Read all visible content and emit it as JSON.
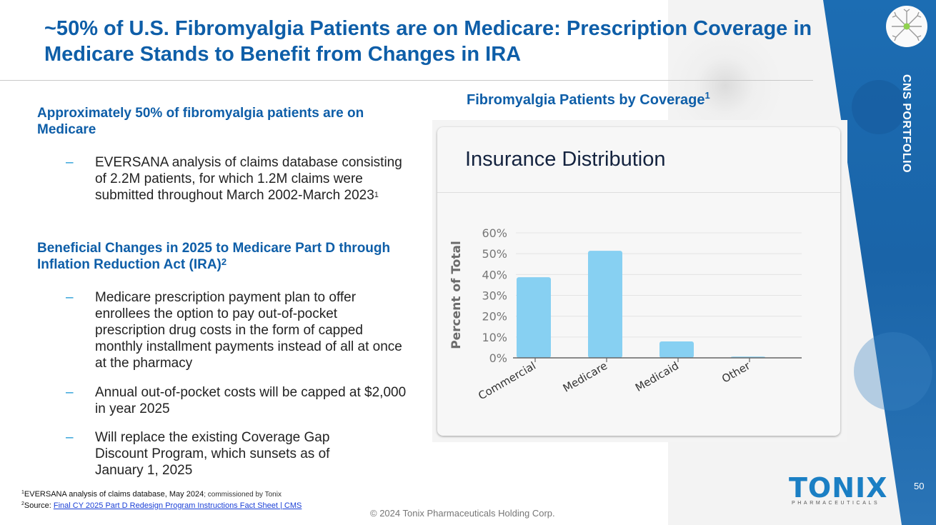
{
  "slide": {
    "title": "~50% of U.S. Fibromyalgia Patients are on Medicare: Prescription Coverage in Medicare Stands to Benefit from Changes in IRA",
    "side_label": "CNS PORTFOLIO",
    "page_number": "50",
    "copyright": "© 2024 Tonix Pharmaceuticals Holding Corp.",
    "brand_color": "#0e5ea8",
    "accent_color": "#1e9ad6"
  },
  "logo": {
    "name": "TONIX",
    "sub": "PHARMACEUTICALS"
  },
  "left": {
    "section1": {
      "heading": "Approximately 50% of fibromyalgia patients are on Medicare",
      "bullets": [
        {
          "dash": "–",
          "text": "EVERSANA analysis of claims database consisting of 2.2M patients, for which 1.2M claims were submitted throughout March 2002-March 2023",
          "sup": "1"
        }
      ]
    },
    "section2": {
      "heading": "Beneficial  Changes in 2025 to Medicare Part D through Inflation Reduction Act (IRA)",
      "heading_sup": "2",
      "bullets": [
        {
          "dash": "–",
          "text": "Medicare prescription payment plan to offer enrollees the option to pay out-of-pocket prescription drug costs in the form of capped monthly installment payments instead of all at once at the pharmacy"
        },
        {
          "dash": "–",
          "text": "Annual out-of-pocket costs will be capped at $2,000 in year 2025"
        },
        {
          "dash": "–",
          "text": "Will replace the existing Coverage Gap Discount Program, which sunsets as of January 1, 2025"
        }
      ]
    }
  },
  "footnotes": [
    {
      "sup": "1",
      "text": "EVERSANA analysis of claims database, May 2024",
      "tail": "; commissioned by Tonix"
    },
    {
      "sup": "2",
      "text": "Source: ",
      "link": "Final CY 2025 Part D Redesign Program Instructions Fact Sheet | CMS"
    }
  ],
  "chart_heading": {
    "text": "Fibromyalgia Patients by Coverage",
    "sup": "1"
  },
  "chart_data": {
    "type": "bar",
    "title": "Insurance Distribution",
    "xlabel": "",
    "ylabel": "Percent of Total",
    "categories": [
      "Commercial",
      "Medicare",
      "Medicaid",
      "Other"
    ],
    "values": [
      38.7,
      51.4,
      7.9,
      0.6
    ],
    "ylim": [
      0,
      60
    ],
    "yticks": [
      0,
      10,
      20,
      30,
      40,
      50,
      60
    ],
    "ytick_labels": [
      "0%",
      "10%",
      "20%",
      "30%",
      "40%",
      "50%",
      "60%"
    ],
    "grid": true,
    "bar_color": "#87d0f2",
    "legend": "none"
  }
}
